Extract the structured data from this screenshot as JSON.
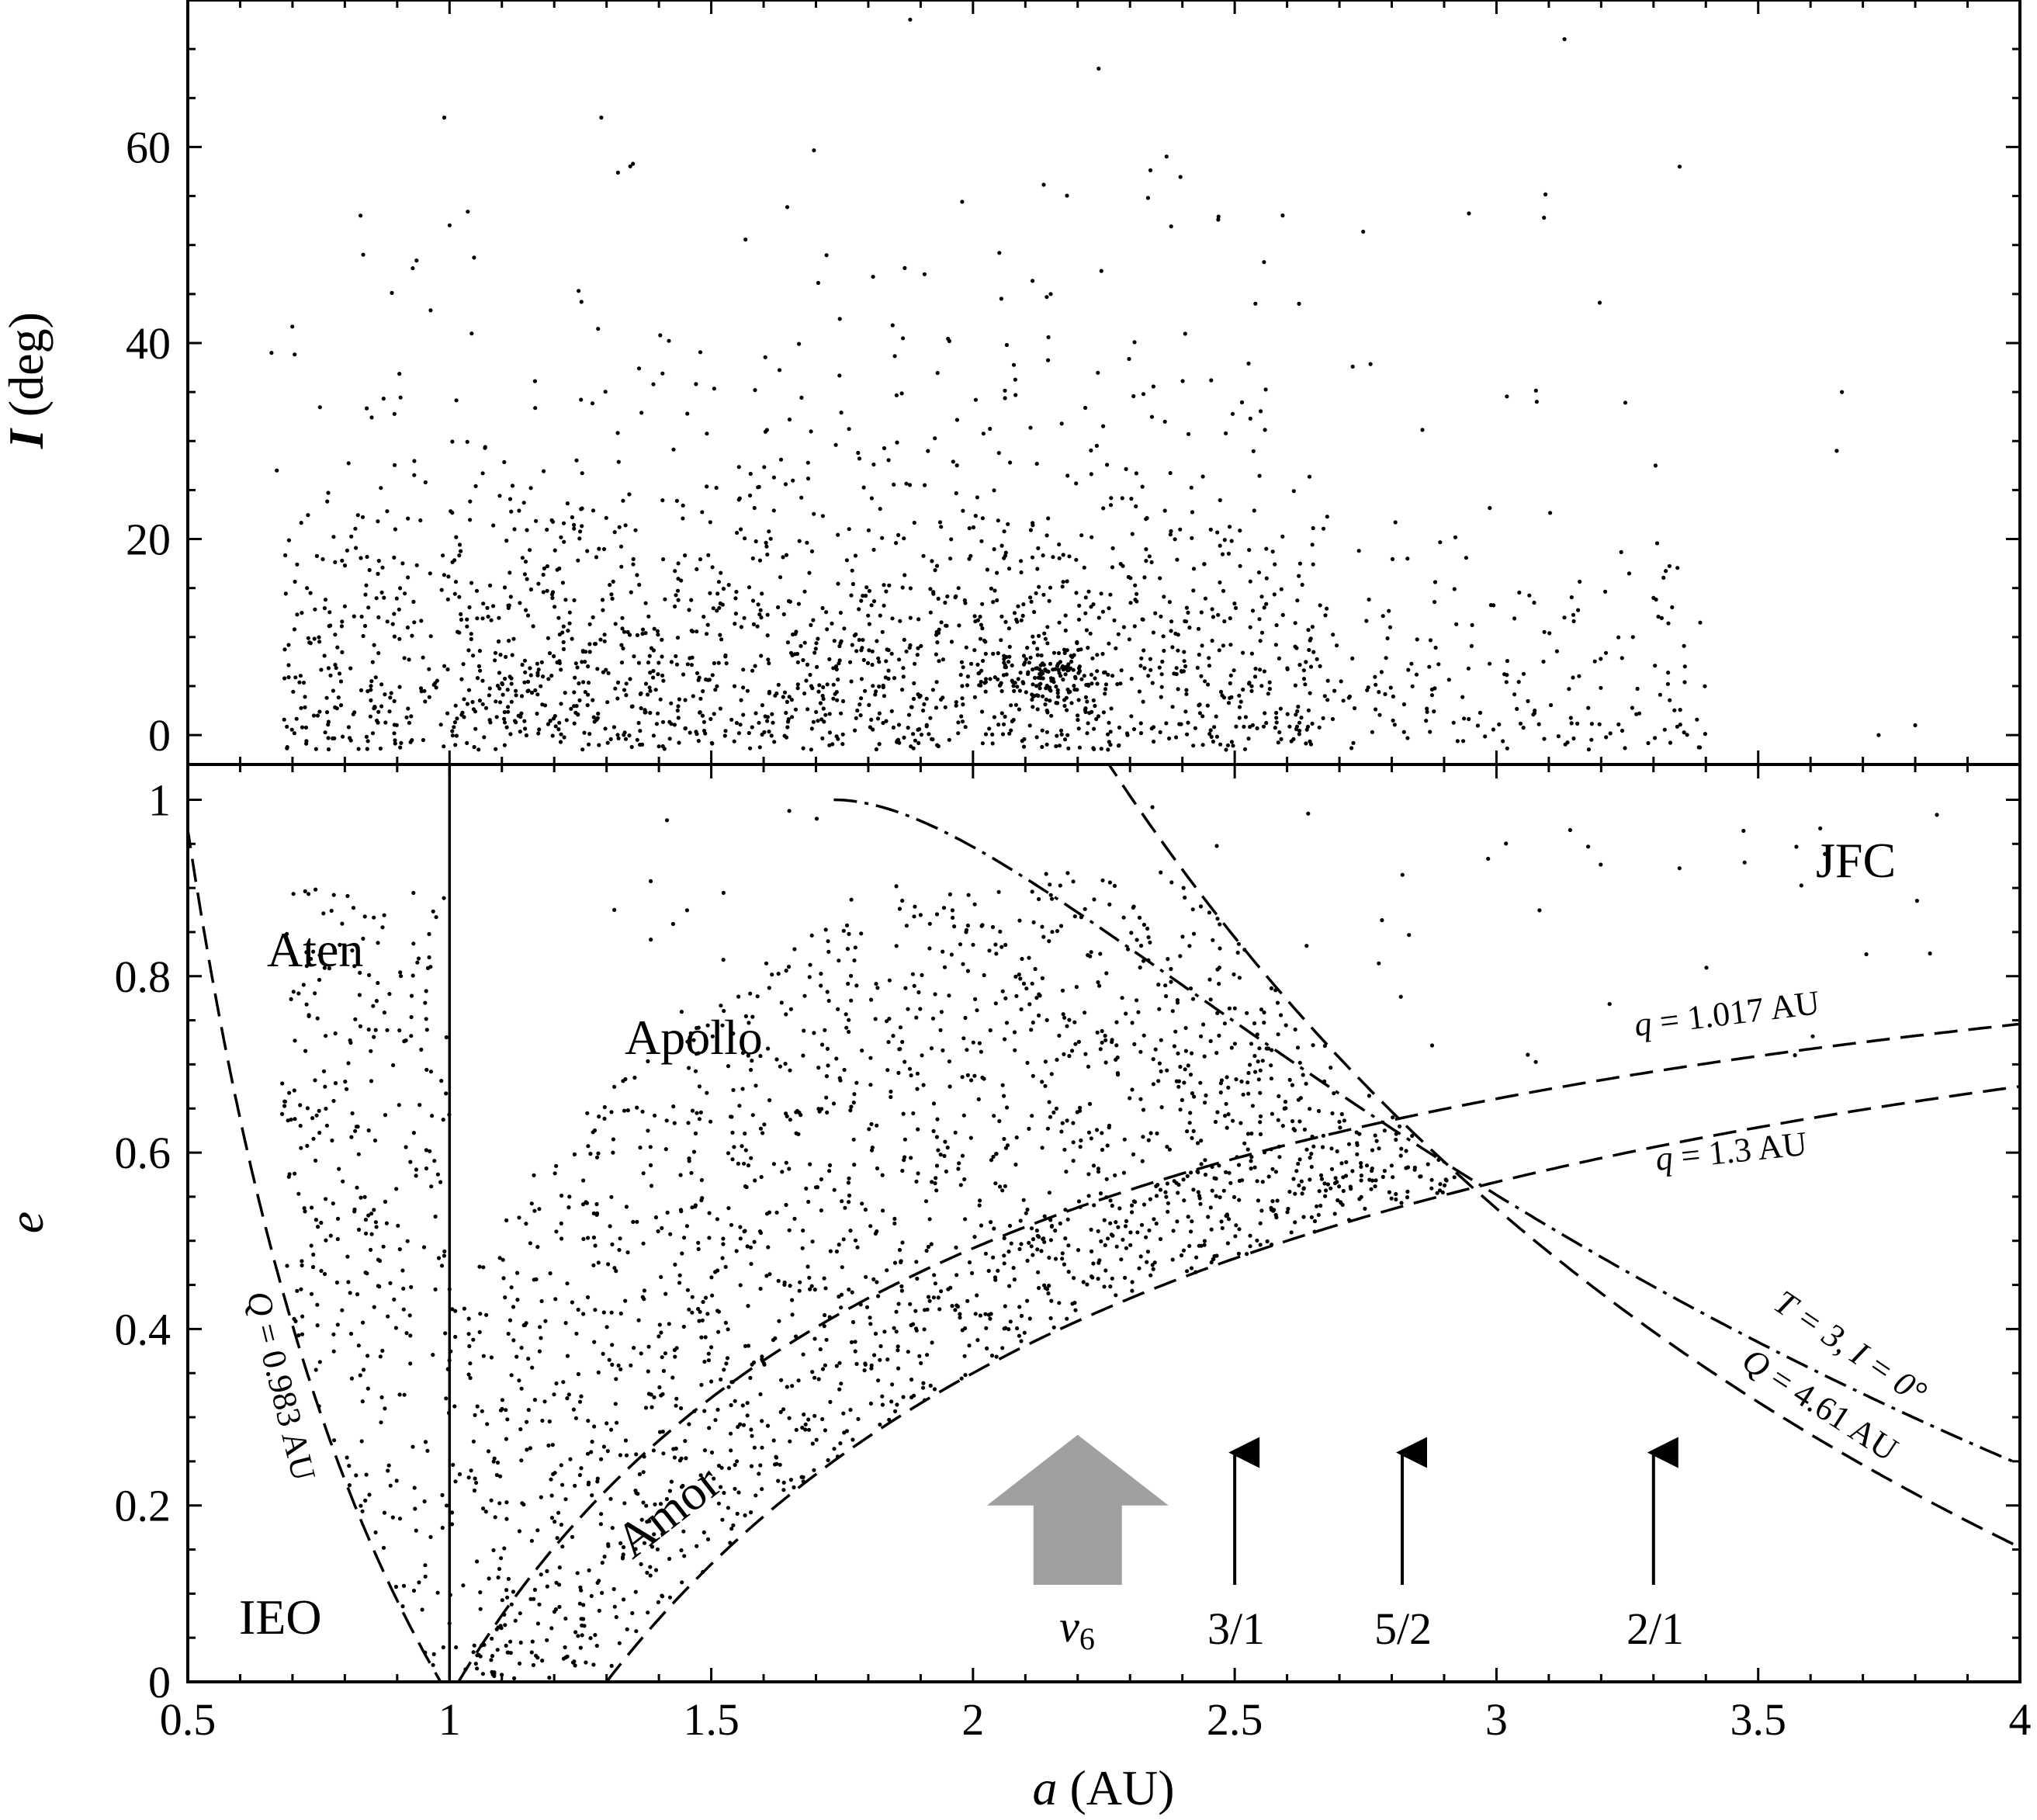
{
  "chart_data": [
    {
      "panel": "top",
      "type": "scatter",
      "title": "",
      "ylabel_var": "I",
      "ylabel_unit": "(deg)",
      "xlim": [
        0.5,
        4
      ],
      "ylim": [
        -3,
        75
      ],
      "yticks": [
        0,
        20,
        40,
        60
      ],
      "ytick_labels": [
        "0",
        "20",
        "40",
        "60"
      ],
      "grid": false,
      "points_description": "~2000 NEO orbits (a, I)",
      "sample_points": [
        {
          "x": 0.66,
          "y": 39
        },
        {
          "x": 0.67,
          "y": 27
        },
        {
          "x": 0.83,
          "y": 53
        },
        {
          "x": 0.99,
          "y": 63
        },
        {
          "x": 1.29,
          "y": 63
        },
        {
          "x": 1.88,
          "y": 73
        },
        {
          "x": 2.24,
          "y": 68
        },
        {
          "x": 3.13,
          "y": 71
        },
        {
          "x": 3.35,
          "y": 58
        },
        {
          "x": 3.66,
          "y": 35
        },
        {
          "x": 3.65,
          "y": 29
        },
        {
          "x": 3.8,
          "y": 1
        },
        {
          "x": 3.73,
          "y": 0
        },
        {
          "x": 3.36,
          "y": 7
        },
        {
          "x": 3.3,
          "y": 14
        }
      ]
    },
    {
      "panel": "bottom",
      "type": "scatter",
      "xlabel_var": "a",
      "xlabel_unit": "(AU)",
      "ylabel_var": "e",
      "xlim": [
        0.5,
        4
      ],
      "ylim": [
        0,
        1.04
      ],
      "xticks": [
        0.5,
        1,
        1.5,
        2,
        2.5,
        3,
        3.5,
        4
      ],
      "xtick_labels": [
        "0.5",
        "1",
        "1.5",
        "2",
        "2.5",
        "3",
        "3.5",
        "4"
      ],
      "yticks": [
        0,
        0.2,
        0.4,
        0.6,
        0.8,
        1
      ],
      "ytick_labels": [
        "0",
        "0.2",
        "0.4",
        "0.6",
        "0.8",
        "1"
      ],
      "grid": false,
      "points_description": "~2000 NEO orbits (a, e)",
      "curves": [
        {
          "name": "q = 1.017 AU",
          "formula": "e = 1 - 1.017/a",
          "style": "dashed"
        },
        {
          "name": "q = 1.3 AU",
          "formula": "e = 1 - 1.3/a",
          "style": "dashed"
        },
        {
          "name": "Q = 0.983 AU",
          "formula": "e = 0.983/a - 1",
          "style": "dashed"
        },
        {
          "name": "Q = 4.61 AU",
          "formula": "e = 4.61/a - 1",
          "style": "dashed"
        },
        {
          "name": "T = 3, I = 0°",
          "formula": "T_J = 5.2/a + 2 sqrt(a (1-e^2)/5.2) = 3",
          "style": "dash-dot"
        },
        {
          "name": "a = 1 AU",
          "formula": "a = 1",
          "style": "solid"
        }
      ],
      "regions": [
        "Aten",
        "Apollo",
        "Amor",
        "IEO",
        "JFC"
      ],
      "resonances": [
        {
          "label": "ν6",
          "a": 2.2,
          "marker": "thick gray arrow"
        },
        {
          "label": "3/1",
          "a": 2.5
        },
        {
          "label": "5/2",
          "a": 2.82
        },
        {
          "label": "2/1",
          "a": 3.3
        }
      ]
    }
  ],
  "text": {
    "top_ylabel_var": "I",
    "top_ylabel_unit": " (deg)",
    "bottom_ylabel": "e",
    "xlabel_var": "a",
    "xlabel_unit": " (AU)",
    "region_aten": "Aten",
    "region_apollo": "Apollo",
    "region_amor": "Amor",
    "region_ieo": "IEO",
    "region_jfc": "JFC",
    "curve_q1017": "q = 1.017 AU",
    "curve_q13": "q = 1.3 AU",
    "curve_Q0983": "Q = 0.983 AU",
    "curve_Q461": "Q = 4.61 AU",
    "curve_tisserand": "T = 3, I = 0°",
    "res_nu6": "ν6",
    "res_31": "3/1",
    "res_52": "5/2",
    "res_21": "2/1"
  },
  "colors": {
    "ink": "#000000",
    "nu6_arrow": "#a0a0a0",
    "background": "#ffffff"
  }
}
